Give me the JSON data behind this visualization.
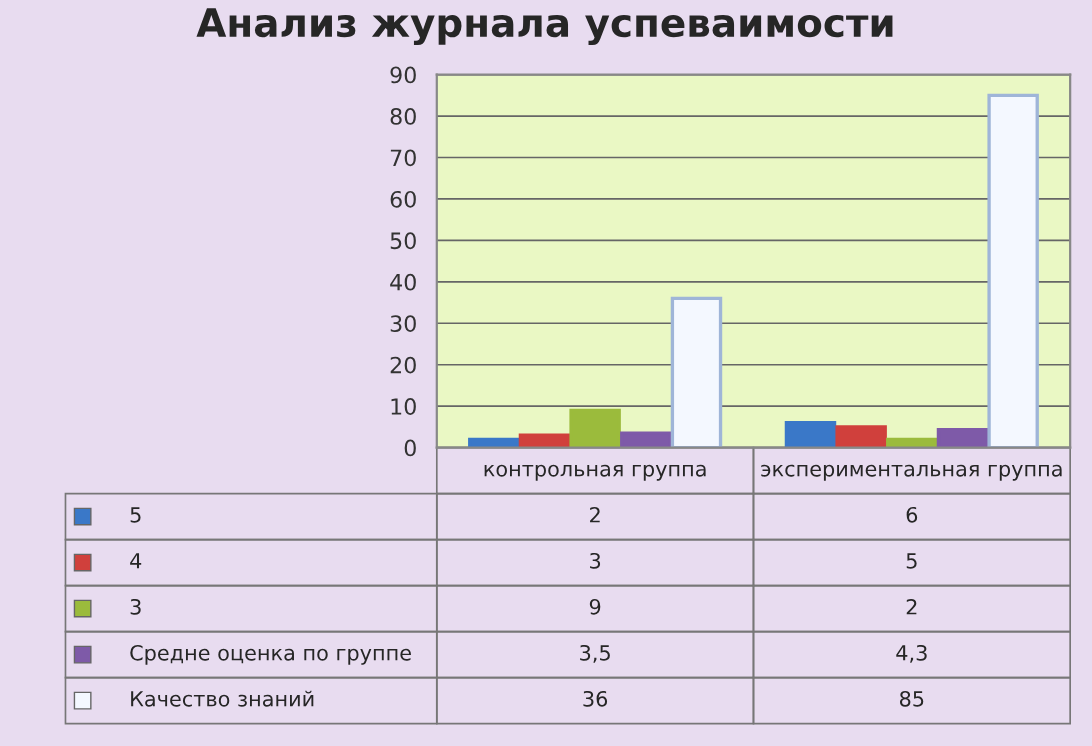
{
  "chart_data": {
    "type": "bar",
    "title": "Анализ журнала успеваимости",
    "categories": [
      "контрольная группа",
      "экспериментальная группа"
    ],
    "series": [
      {
        "name": "5",
        "color": "#3a78c8",
        "values": [
          2,
          6
        ],
        "value_labels": [
          "2",
          "6"
        ]
      },
      {
        "name": "4",
        "color": "#d0403c",
        "values": [
          3,
          5
        ],
        "value_labels": [
          "3",
          "5"
        ]
      },
      {
        "name": "3",
        "color": "#9bbb3c",
        "values": [
          9,
          2
        ],
        "value_labels": [
          "9",
          "2"
        ]
      },
      {
        "name": "Средне оценка по группе",
        "color": "#7e5aa8",
        "values": [
          3.5,
          4.3
        ],
        "value_labels": [
          "3,5",
          "4,3"
        ]
      },
      {
        "name": "Качество знаний",
        "color": "#f4f8ff",
        "values": [
          36,
          85
        ],
        "value_labels": [
          "36",
          "85"
        ]
      }
    ],
    "ylim": [
      0,
      90
    ],
    "yticks": [
      0,
      10,
      20,
      30,
      40,
      50,
      60,
      70,
      80,
      90
    ],
    "grid": "y",
    "legend": "bottom"
  }
}
